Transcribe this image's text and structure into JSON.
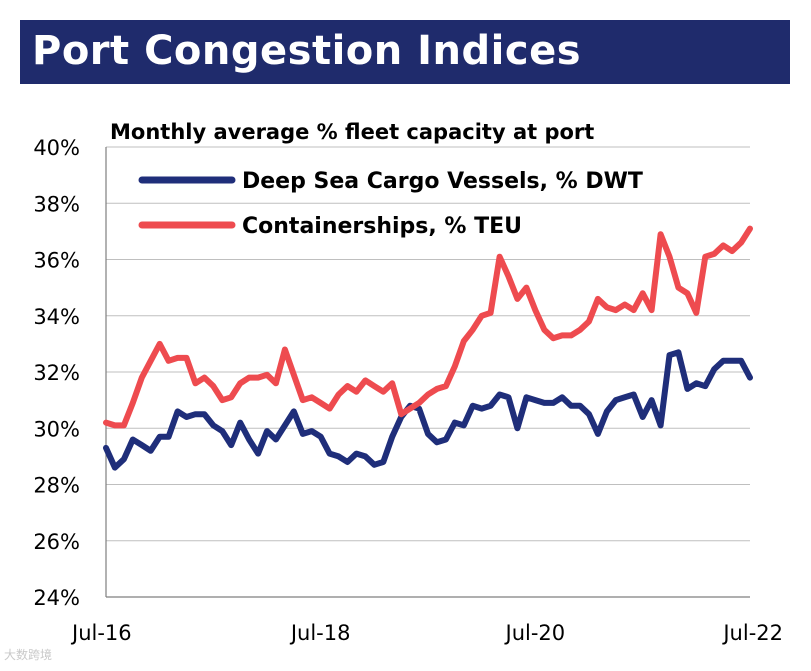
{
  "title": "Port Congestion Indices",
  "watermark": "大数跨境",
  "colors": {
    "title_bg": "#1f2b6c",
    "title_text": "#ffffff",
    "deep_sea": "#1f2e7a",
    "container": "#ee4b4f",
    "grid": "#bfbfbf",
    "text": "#000000"
  },
  "chart_data": {
    "type": "line",
    "title": "Monthly average % fleet capacity at port",
    "xlabel": "",
    "ylabel": "",
    "ylim": [
      24,
      40
    ],
    "y_ticks": [
      "40%",
      "38%",
      "36%",
      "34%",
      "32%",
      "30%",
      "28%",
      "26%",
      "24%"
    ],
    "y_tick_values": [
      40,
      38,
      36,
      34,
      32,
      30,
      28,
      26,
      24
    ],
    "x_ticks": [
      "Jul-16",
      "Jul-18",
      "Jul-20",
      "Jul-22"
    ],
    "x_tick_index": [
      0,
      24,
      48,
      72
    ],
    "grid": "horizontal",
    "legend_position": "top-left",
    "x_start": "Jul-16",
    "x_frequency": "monthly",
    "series": [
      {
        "name": "Deep Sea Cargo Vessels, % DWT",
        "color": "#1f2e7a",
        "values": [
          29.3,
          28.6,
          28.9,
          29.6,
          29.4,
          29.2,
          29.7,
          29.7,
          30.6,
          30.4,
          30.5,
          30.5,
          30.1,
          29.9,
          29.4,
          30.2,
          29.6,
          29.1,
          29.9,
          29.6,
          30.1,
          30.6,
          29.8,
          29.9,
          29.7,
          29.1,
          29.0,
          28.8,
          29.1,
          29.0,
          28.7,
          28.8,
          29.7,
          30.4,
          30.8,
          30.7,
          29.8,
          29.5,
          29.6,
          30.2,
          30.1,
          30.8,
          30.7,
          30.8,
          31.2,
          31.1,
          30.0,
          31.1,
          31.0,
          30.9,
          30.9,
          31.1,
          30.8,
          30.8,
          30.5,
          29.8,
          30.6,
          31.0,
          31.1,
          31.2,
          30.4,
          31.0,
          30.1,
          32.6,
          32.7,
          31.4,
          31.6,
          31.5,
          32.1,
          32.4,
          32.4,
          32.4,
          31.8
        ]
      },
      {
        "name": "Containerships, % TEU",
        "color": "#ee4b4f",
        "values": [
          30.2,
          30.1,
          30.1,
          30.9,
          31.8,
          32.4,
          33.0,
          32.4,
          32.5,
          32.5,
          31.6,
          31.8,
          31.5,
          31.0,
          31.1,
          31.6,
          31.8,
          31.8,
          31.9,
          31.6,
          32.8,
          31.9,
          31.0,
          31.1,
          30.9,
          30.7,
          31.2,
          31.5,
          31.3,
          31.7,
          31.5,
          31.3,
          31.6,
          30.5,
          30.7,
          30.9,
          31.2,
          31.4,
          31.5,
          32.2,
          33.1,
          33.5,
          34.0,
          34.1,
          36.1,
          35.4,
          34.6,
          35.0,
          34.2,
          33.5,
          33.2,
          33.3,
          33.3,
          33.5,
          33.8,
          34.6,
          34.3,
          34.2,
          34.4,
          34.2,
          34.8,
          34.2,
          36.9,
          36.1,
          35.0,
          34.8,
          34.1,
          36.1,
          36.2,
          36.5,
          36.3,
          36.6,
          37.1
        ]
      }
    ]
  }
}
